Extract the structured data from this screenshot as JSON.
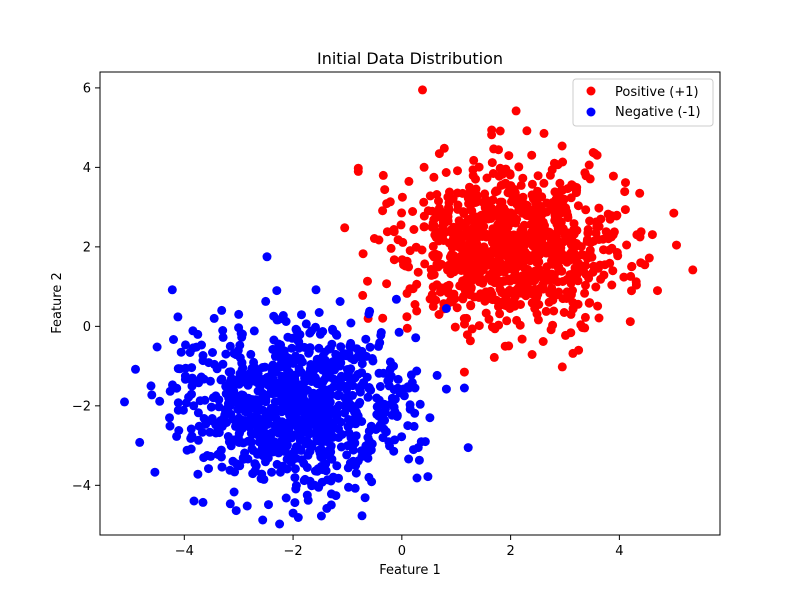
{
  "chart_data": {
    "type": "scatter",
    "title": "Initial Data Distribution",
    "xlabel": "Feature 1",
    "ylabel": "Feature 2",
    "xlim": [
      -5.55,
      5.85
    ],
    "ylim": [
      -5.25,
      6.4
    ],
    "xticks": [
      -4,
      -2,
      0,
      2,
      4
    ],
    "yticks": [
      -4,
      -2,
      0,
      2,
      4,
      6
    ],
    "grid": false,
    "legend_position": "upper right",
    "series": [
      {
        "name": "Positive (+1)",
        "color": "#ff0000",
        "count": 1000,
        "center": [
          2.0,
          2.0
        ],
        "spread": 1.0,
        "values": [
          [
            0.38,
            5.95
          ],
          [
            2.1,
            5.42
          ],
          [
            1.65,
            4.82
          ],
          [
            2.3,
            4.92
          ],
          [
            0.78,
            4.48
          ],
          [
            -0.8,
            3.98
          ],
          [
            -0.8,
            3.9
          ],
          [
            5.0,
            2.85
          ],
          [
            5.35,
            1.42
          ],
          [
            4.7,
            0.9
          ],
          [
            4.2,
            0.12
          ],
          [
            -1.05,
            2.48
          ],
          [
            -0.62,
            0.2
          ],
          [
            -0.72,
            0.78
          ],
          [
            1.15,
            -1.15
          ],
          [
            2.95,
            -1.02
          ],
          [
            3.25,
            -0.6
          ],
          [
            2.6,
            -0.38
          ],
          [
            1.7,
            -0.78
          ],
          [
            4.55,
            1.72
          ],
          [
            4.4,
            2.38
          ],
          [
            3.55,
            4.35
          ],
          [
            0.85,
            0.58
          ],
          [
            0.1,
            -0.05
          ],
          [
            1.9,
            -0.5
          ]
        ]
      },
      {
        "name": "Negative (-1)",
        "color": "#0000ff",
        "count": 1000,
        "center": [
          -2.0,
          -2.0
        ],
        "spread": 1.0,
        "values": [
          [
            -2.48,
            1.75
          ],
          [
            -4.22,
            0.92
          ],
          [
            -5.1,
            -1.9
          ],
          [
            -4.82,
            -2.92
          ],
          [
            -2.3,
            0.9
          ],
          [
            -2.0,
            -4.7
          ],
          [
            -1.38,
            -4.58
          ],
          [
            0.48,
            -3.78
          ],
          [
            1.22,
            -3.05
          ],
          [
            1.15,
            -1.55
          ],
          [
            0.82,
            -1.58
          ],
          [
            0.82,
            0.45
          ],
          [
            -0.1,
            0.68
          ],
          [
            -3.45,
            0.2
          ],
          [
            -3.0,
            0.3
          ],
          [
            -4.5,
            -0.52
          ],
          [
            -3.75,
            -3.72
          ],
          [
            -0.98,
            -4.05
          ],
          [
            0.3,
            -3.05
          ],
          [
            -0.05,
            -0.15
          ]
        ]
      }
    ]
  }
}
